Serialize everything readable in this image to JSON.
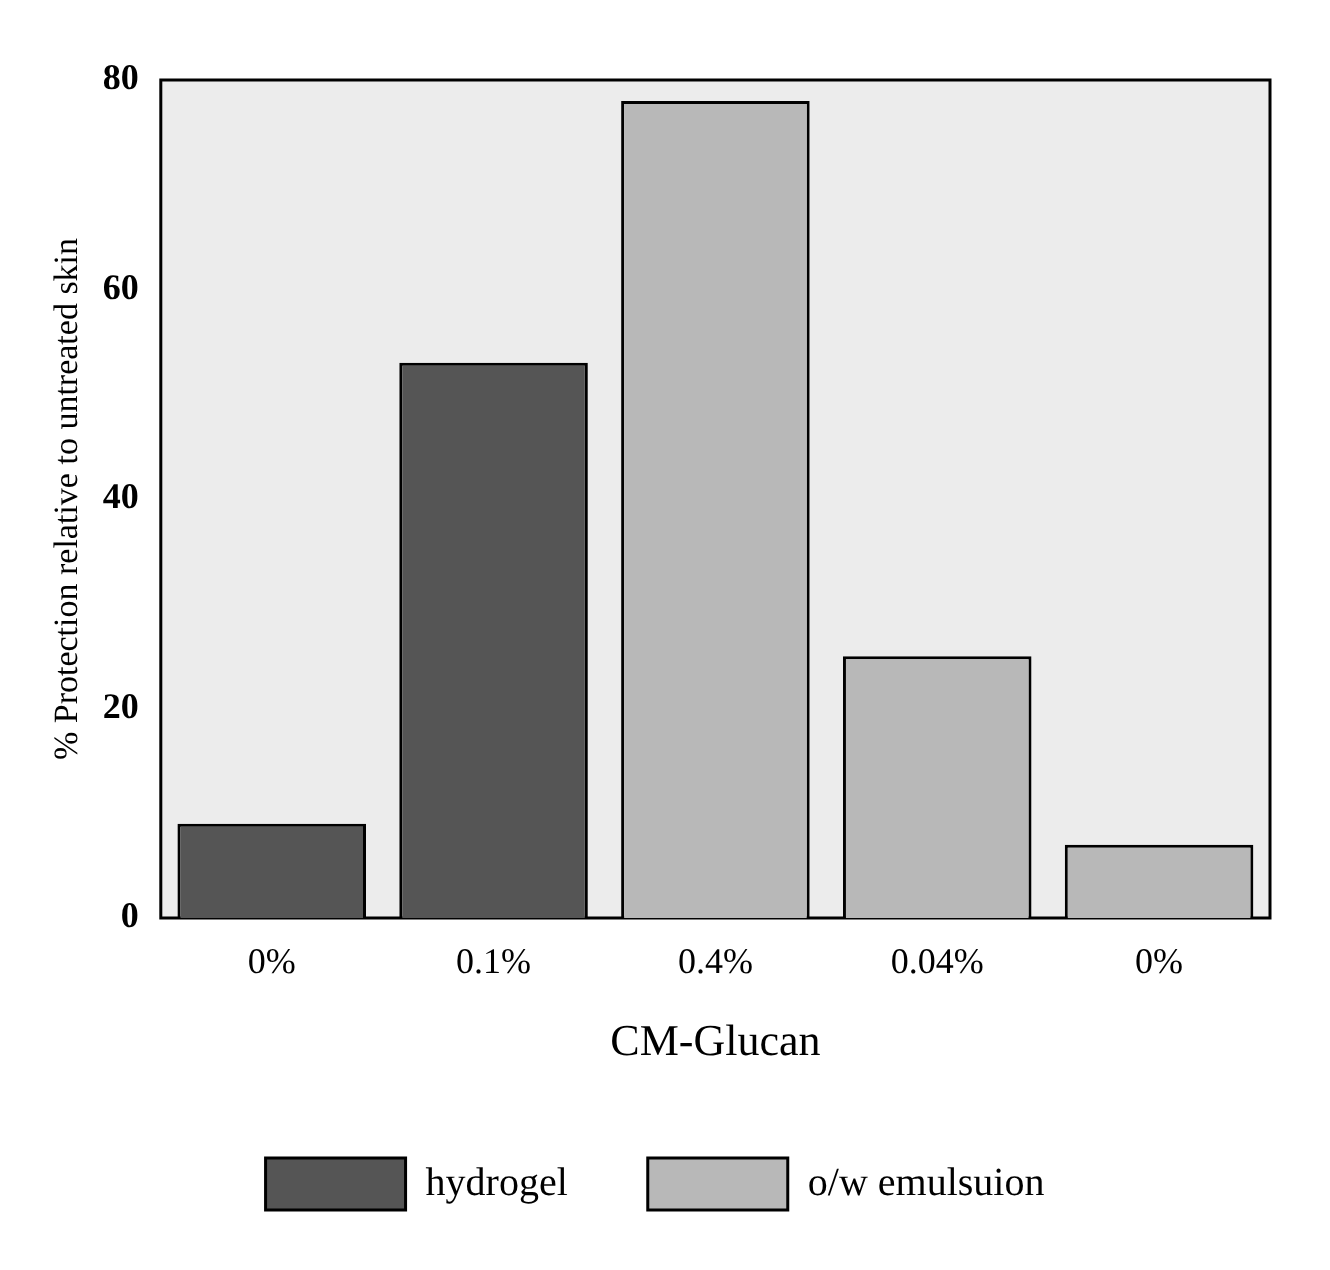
{
  "chart_data": {
    "type": "bar",
    "xlabel": "CM-Glucan",
    "ylabel": "% Protection relative to untreated skin",
    "categories": [
      "0%",
      "0.1%",
      "0.4%",
      "0.04%",
      "0%"
    ],
    "series": [
      {
        "name": "hydrogel",
        "color": "#555555",
        "values": [
          9,
          53,
          null,
          null,
          null
        ]
      },
      {
        "name": "o/w emulsuion",
        "color": "#b8b8b8",
        "values": [
          null,
          null,
          78,
          25,
          7
        ]
      }
    ],
    "ylim": [
      0,
      80
    ],
    "yticks": [
      0,
      20,
      40,
      60,
      80
    ],
    "grid": false,
    "legend": "bottom"
  }
}
